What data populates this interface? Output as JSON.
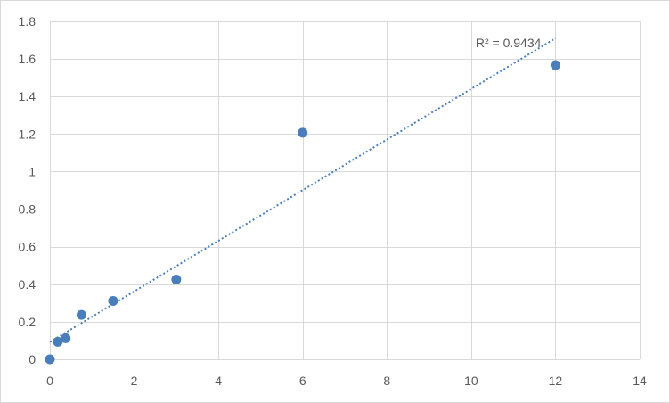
{
  "chart_data": {
    "type": "scatter",
    "title": "",
    "xlabel": "",
    "ylabel": "",
    "xlim": [
      0,
      14
    ],
    "ylim": [
      0,
      1.8
    ],
    "x_ticks": [
      0,
      2,
      4,
      6,
      8,
      10,
      12,
      14
    ],
    "y_ticks": [
      0,
      0.2,
      0.4,
      0.6,
      0.8,
      1,
      1.2,
      1.4,
      1.6,
      1.8
    ],
    "x_tick_labels": [
      "0",
      "2",
      "4",
      "6",
      "8",
      "10",
      "12",
      "14"
    ],
    "y_tick_labels": [
      "0",
      "0.2",
      "0.4",
      "0.6",
      "0.8",
      "1",
      "1.2",
      "1.4",
      "1.6",
      "1.8"
    ],
    "grid": true,
    "legend": "none",
    "series": [
      {
        "x": [
          0,
          0.188,
          0.375,
          0.75,
          1.5,
          3,
          6,
          12
        ],
        "y": [
          0.0,
          0.093,
          0.112,
          0.237,
          0.311,
          0.425,
          1.207,
          1.567
        ],
        "color": "#4a7ebb"
      }
    ],
    "trendline": {
      "type": "linear",
      "style": "dotted",
      "color": "#4a7ebb",
      "x_range": [
        0,
        12
      ],
      "y_start": 0.092,
      "y_end": 1.71,
      "label": "R² = 0.9434"
    },
    "gridline_color": "#d9d9d9",
    "text_color": "#595959"
  }
}
